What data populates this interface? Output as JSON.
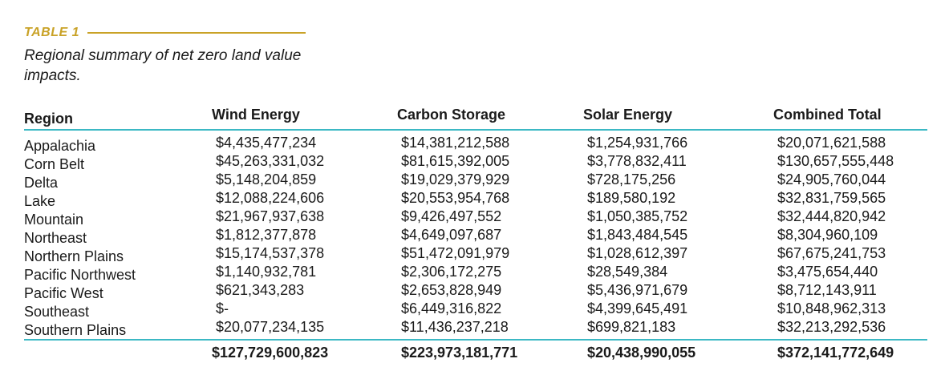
{
  "label": "TABLE 1",
  "caption": "Regional summary of net zero land value impacts.",
  "headers": {
    "region": "Region",
    "wind": "Wind Energy",
    "carbon": "Carbon Storage",
    "solar": "Solar Energy",
    "total": "Combined Total"
  },
  "rows": [
    {
      "region": "Appalachia",
      "wind": "$4,435,477,234",
      "carbon": "$14,381,212,588",
      "solar": "$1,254,931,766",
      "total": "$20,071,621,588"
    },
    {
      "region": "Corn Belt",
      "wind": "$45,263,331,032",
      "carbon": "$81,615,392,005",
      "solar": "$3,778,832,411",
      "total": "$130,657,555,448"
    },
    {
      "region": "Delta",
      "wind": "$5,148,204,859",
      "carbon": "$19,029,379,929",
      "solar": "$728,175,256",
      "total": "$24,905,760,044"
    },
    {
      "region": "Lake",
      "wind": "$12,088,224,606",
      "carbon": "$20,553,954,768",
      "solar": "$189,580,192",
      "total": "$32,831,759,565"
    },
    {
      "region": "Mountain",
      "wind": "$21,967,937,638",
      "carbon": "$9,426,497,552",
      "solar": "$1,050,385,752",
      "total": "$32,444,820,942"
    },
    {
      "region": "Northeast",
      "wind": "$1,812,377,878",
      "carbon": "$4,649,097,687",
      "solar": "$1,843,484,545",
      "total": "$8,304,960,109"
    },
    {
      "region": "Northern Plains",
      "wind": "$15,174,537,378",
      "carbon": "$51,472,091,979",
      "solar": "$1,028,612,397",
      "total": "$67,675,241,753"
    },
    {
      "region": "Pacific Northwest",
      "wind": "$1,140,932,781",
      "carbon": "$2,306,172,275",
      "solar": "$28,549,384",
      "total": "$3,475,654,440"
    },
    {
      "region": "Pacific West",
      "wind": "$621,343,283",
      "carbon": "$2,653,828,949",
      "solar": "$5,436,971,679",
      "total": "$8,712,143,911"
    },
    {
      "region": "Southeast",
      "wind": "$-",
      "carbon": "$6,449,316,822",
      "solar": "$4,399,645,491",
      "total": "$10,848,962,313"
    },
    {
      "region": "Southern Plains",
      "wind": "$20,077,234,135",
      "carbon": "$11,436,237,218",
      "solar": "$699,821,183",
      "total": "$32,213,292,536"
    }
  ],
  "totals": {
    "wind": "$127,729,600,823",
    "carbon": "$223,973,181,771",
    "solar": "$20,438,990,055",
    "total": "$372,141,772,649"
  },
  "colors": {
    "accent_gold": "#c9a227",
    "rule_teal": "#3bb8c4"
  }
}
